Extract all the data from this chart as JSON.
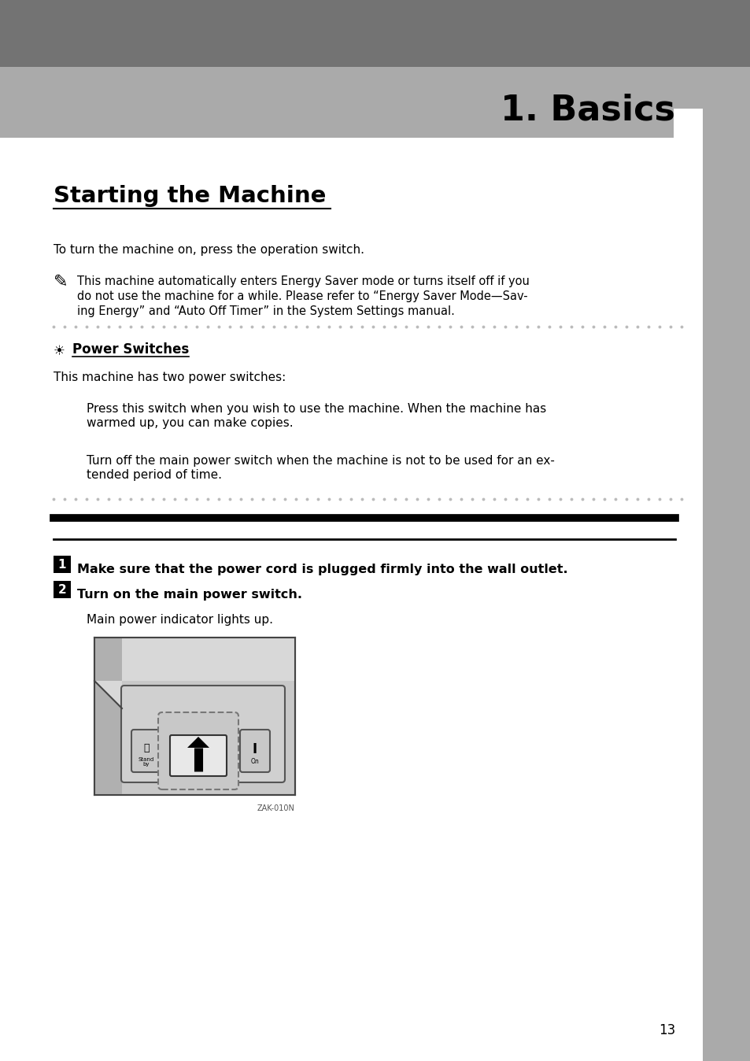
{
  "page_bg": "#ffffff",
  "header_dark_bg": "#737373",
  "header_light_bg": "#aaaaaa",
  "right_sidebar_bg": "#aaaaaa",
  "header_title": "1. Basics",
  "section_title": "Starting the Machine",
  "body_text_1": "To turn the machine on, press the operation switch.",
  "note_line1": "This machine automatically enters Energy Saver mode or turns itself off if you",
  "note_line2": "do not use the machine for a while. Please refer to “Energy Saver Mode—Sav-",
  "note_line3": "ing Energy” and “Auto Off Timer” in the System Settings manual.",
  "subsection_title": "Power Switches",
  "body_text_2": "This machine has two power switches:",
  "press_line1": "Press this switch when you wish to use the machine. When the machine has",
  "press_line2": "warmed up, you can make copies.",
  "turn_line1": "Turn off the main power switch when the machine is not to be used for an ex-",
  "turn_line2": "tended period of time.",
  "step1_text": "Make sure that the power cord is plugged firmly into the wall outlet.",
  "step2_text": "Turn on the main power switch.",
  "step2_sub": "Main power indicator lights up.",
  "img_caption": "ZAK-010N",
  "page_number": "13",
  "dot_color": "#bbbbbb",
  "black": "#000000",
  "white": "#ffffff",
  "grey_light": "#c8c8c8",
  "grey_mid": "#a8a8a8"
}
